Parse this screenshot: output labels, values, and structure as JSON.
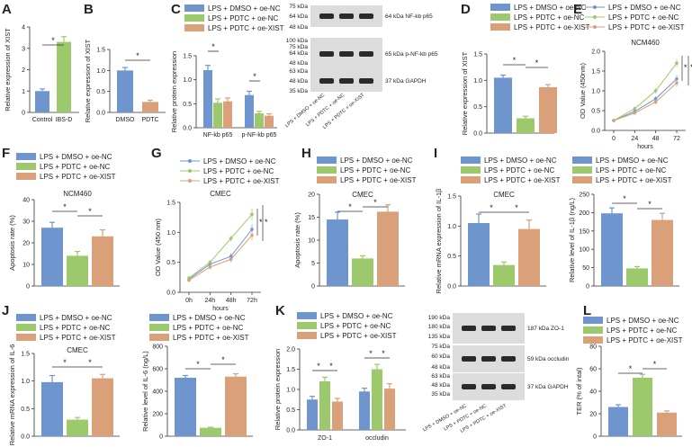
{
  "colors": {
    "blue": "#6f95cf",
    "green": "#9cc96b",
    "orange": "#d9a07a",
    "black": "#333333"
  },
  "panels": {
    "A": {
      "letter": "A",
      "ylabel": "Relative expression of XIST",
      "ticks": [
        "0",
        "1",
        "2",
        "3",
        "4"
      ],
      "categories": [
        "Control",
        "IBS-D"
      ],
      "star": "*"
    },
    "B": {
      "letter": "B",
      "ylabel": "Relative expression of XIST",
      "ticks": [
        "0.0",
        "0.5",
        "1.0",
        "1.5"
      ],
      "categories": [
        "DMSO",
        "PDTC"
      ],
      "star": "*"
    },
    "C": {
      "letter": "C",
      "ylabel": "Relative protein expression",
      "ticks": [
        "0.0",
        "0.5",
        "1.0",
        "1.5"
      ],
      "categories": [
        "NF-kb p65",
        "p-NF-kb p65"
      ],
      "star": "*",
      "legend": [
        "LPS + DMSO + oe-NC",
        "LPS + PDTC + oe-NC",
        "LPS + PDTC + oe-XIST"
      ],
      "blot": {
        "markers1": [
          "75 kDa",
          "64 kDa",
          "48 kDa"
        ],
        "band1": "64 kDa  NF-kb p65",
        "markers2": [
          "100 kDa",
          "75 kDa",
          "64 kDa",
          "48 kDa"
        ],
        "band2": "65 kDa  p-NF-kb p65",
        "markers3": [
          "63 kDa",
          "48 kDa",
          "35 kDa"
        ],
        "band3": "37 kDa  GAPDH",
        "lanes": [
          "LPS + DMSO + oe-NC",
          "LPS + PDTC + oe-NC",
          "LPS + PDTC + oe-XIST"
        ]
      }
    },
    "D": {
      "letter": "D",
      "ylabel": "Relative expression of XIST",
      "ticks": [
        "0.0",
        "0.5",
        "1.0",
        "1.5"
      ],
      "legend": [
        "LPS + DMSO + oe-NC",
        "LPS + PDTC + oe-NC",
        "LPS + PDTC + oe-XIST"
      ],
      "star": "*"
    },
    "E": {
      "letter": "E",
      "title": "NCM460",
      "ylabel": "OD Value (450nm)",
      "xlabel": "hours",
      "ticks": [
        "0.0",
        "0.5",
        "1.0",
        "1.5",
        "2.0"
      ],
      "xticks": [
        "0",
        "24",
        "48",
        "72"
      ],
      "legend": [
        "LPS + DMSO + oe-NC",
        "LPS + PDTC + oe-NC",
        "LPS + PDTC + oe-XIST"
      ],
      "star": "*"
    },
    "F": {
      "letter": "F",
      "title": "NCM460",
      "ylabel": "Apoptosis rate (%)",
      "ticks": [
        "0",
        "10",
        "20",
        "30",
        "40"
      ],
      "legend": [
        "LPS + DMSO + oe-NC",
        "LPS + PDTC + oe-NC",
        "LPS + PDTC + oe-XIST"
      ],
      "star": "*"
    },
    "G": {
      "letter": "G",
      "title": "CMEC",
      "ylabel": "OD Value (450 nm)",
      "xlabel": "hours",
      "ticks": [
        "0.0",
        "0.5",
        "1.0",
        "1.5"
      ],
      "xticks": [
        "0h",
        "24h",
        "48h",
        "72h"
      ],
      "legend": [
        "LPS + DMSO + oe-NC",
        "LPS + PDTC + oe-NC",
        "LPS + PDTC + oe-XIST"
      ],
      "star": "*"
    },
    "H": {
      "letter": "H",
      "title": "CMEC",
      "ylabel": "Apoptosis rate (%)",
      "ticks": [
        "0",
        "5",
        "10",
        "15",
        "20"
      ],
      "legend": [
        "LPS + DMSO + oe-NC",
        "LPS + PDTC + oe-NC",
        "LPS + PDTC + oe-XIST"
      ],
      "star": "*"
    },
    "I": {
      "letter": "I",
      "title": "CMEC",
      "ylabel": "Relative mRNA expression of IL-1β",
      "ylabel2": "Relative level of IL-1β (ng/L)",
      "ticks": [
        "0.0",
        "0.5",
        "1.0",
        "1.5"
      ],
      "ticks2": [
        "0",
        "50",
        "100",
        "150",
        "200",
        "250"
      ],
      "legend": [
        "LPS + DMSO + oe-NC",
        "LPS + PDTC + oe-NC",
        "LPS + PDTC + oe-XIST"
      ],
      "star": "*"
    },
    "J": {
      "letter": "J",
      "title": "CMEC",
      "ylabel": "Relative mRNA expression of IL-6",
      "ylabel2": "Relative level of IL-6 (ng/L)",
      "ticks": [
        "0.0",
        "0.5",
        "1.0",
        "1.5"
      ],
      "ticks2": [
        "0",
        "200",
        "400",
        "600",
        "800"
      ],
      "legend": [
        "LPS + DMSO + oe-NC",
        "LPS + PDTC + oe-NC",
        "LPS + PDTC + oe-XIST"
      ],
      "star": "*"
    },
    "K": {
      "letter": "K",
      "ylabel": "Relative protein expression",
      "ticks": [
        "0.0",
        "0.5",
        "1.0",
        "1.5",
        "2.0"
      ],
      "categories": [
        "ZO-1",
        "occludin"
      ],
      "legend": [
        "LPS + DMSO + oe-NC",
        "LPS + PDTC + oe-NC",
        "LPS + PDTC + oe-XIST"
      ],
      "star": "*",
      "blot": {
        "markers1": [
          "190 kDa",
          "180 kDa",
          "135 kDa"
        ],
        "band1": "187 kDa  ZO-1",
        "markers2": [
          "75 kDa",
          "60 kDa",
          "48 kDa"
        ],
        "band2": "59 kDa  occludin",
        "markers3": [
          "63 kDa",
          "48 kDa",
          "35 kDa"
        ],
        "band3": "37 kDa  GAPDH",
        "lanes": [
          "LPS + DMSO + oe-NC",
          "LPS + PDTC + oe-NC",
          "LPS + PDTC + oe-XIST"
        ]
      }
    },
    "L": {
      "letter": "L",
      "ylabel": "TER (% of intal)",
      "ticks": [
        "0",
        "20",
        "40",
        "60",
        "80"
      ],
      "legend": [
        "LPS + DMSO + oe-NC",
        "LPS + PDTC + oe-NC",
        "LPS + PDTC + oe-XIST"
      ],
      "star": "*"
    }
  },
  "chart_data": [
    {
      "id": "A",
      "type": "bar",
      "categories": [
        "Control",
        "IBS-D"
      ],
      "values": [
        1.0,
        3.3
      ],
      "errors": [
        0.1,
        0.25
      ],
      "ylim": [
        0,
        4
      ],
      "colors": [
        "blue",
        "green"
      ],
      "ylabel": "Relative expression of XIST"
    },
    {
      "id": "B",
      "type": "bar",
      "categories": [
        "DMSO",
        "PDTC"
      ],
      "values": [
        1.0,
        0.25
      ],
      "errors": [
        0.07,
        0.04
      ],
      "ylim": [
        0,
        1.5
      ],
      "colors": [
        "blue",
        "orange"
      ],
      "ylabel": "Relative expression of XIST"
    },
    {
      "id": "C",
      "type": "bar",
      "categories": [
        "NF-kb p65",
        "p-NF-kb p65"
      ],
      "series": [
        {
          "name": "LPS + DMSO + oe-NC",
          "values": [
            1.2,
            0.68
          ]
        },
        {
          "name": "LPS + PDTC + oe-NC",
          "values": [
            0.52,
            0.3
          ]
        },
        {
          "name": "LPS + PDTC + oe-XIST",
          "values": [
            0.55,
            0.25
          ]
        }
      ],
      "errors": [
        [
          0.1,
          0.08
        ],
        [
          0.08,
          0.04
        ],
        [
          0.07,
          0.04
        ]
      ],
      "ylim": [
        0,
        1.5
      ],
      "ylabel": "Relative protein expression"
    },
    {
      "id": "D",
      "type": "bar",
      "categories": [
        ""
      ],
      "series": [
        {
          "name": "LPS + DMSO + oe-NC",
          "values": [
            1.05
          ]
        },
        {
          "name": "LPS + PDTC + oe-NC",
          "values": [
            0.28
          ]
        },
        {
          "name": "LPS + PDTC + oe-XIST",
          "values": [
            0.87
          ]
        }
      ],
      "errors": [
        [
          0.05
        ],
        [
          0.04
        ],
        [
          0.05
        ]
      ],
      "ylim": [
        0,
        1.5
      ],
      "ylabel": "Relative expression of XIST"
    },
    {
      "id": "E",
      "type": "line",
      "title": "NCM460",
      "x": [
        0,
        24,
        48,
        72
      ],
      "series": [
        {
          "name": "LPS + DMSO + oe-NC",
          "values": [
            0.25,
            0.48,
            0.8,
            1.3
          ]
        },
        {
          "name": "LPS + PDTC + oe-NC",
          "values": [
            0.25,
            0.55,
            1.0,
            1.7
          ]
        },
        {
          "name": "LPS + PDTC + oe-XIST",
          "values": [
            0.25,
            0.44,
            0.72,
            1.2
          ]
        }
      ],
      "errors": [
        [
          0.03,
          0.05,
          0.06,
          0.1
        ],
        [
          0.03,
          0.05,
          0.07,
          0.1
        ],
        [
          0.03,
          0.04,
          0.06,
          0.1
        ]
      ],
      "ylim": [
        0,
        2.0
      ],
      "xlabel": "hours",
      "ylabel": "OD Value (450nm)"
    },
    {
      "id": "F",
      "type": "bar",
      "title": "NCM460",
      "categories": [
        ""
      ],
      "series": [
        {
          "name": "LPS + DMSO + oe-NC",
          "values": [
            27
          ]
        },
        {
          "name": "LPS + PDTC + oe-NC",
          "values": [
            14
          ]
        },
        {
          "name": "LPS + PDTC + oe-XIST",
          "values": [
            23
          ]
        }
      ],
      "errors": [
        [
          2.5
        ],
        [
          2
        ],
        [
          3
        ]
      ],
      "ylim": [
        0,
        40
      ],
      "ylabel": "Apoptosis rate (%)"
    },
    {
      "id": "G",
      "type": "line",
      "title": "CMEC",
      "x": [
        0,
        24,
        48,
        72
      ],
      "series": [
        {
          "name": "LPS + DMSO + oe-NC",
          "values": [
            0.22,
            0.47,
            0.6,
            1.05
          ]
        },
        {
          "name": "LPS + PDTC + oe-NC",
          "values": [
            0.24,
            0.5,
            0.9,
            1.3
          ]
        },
        {
          "name": "LPS + PDTC + oe-XIST",
          "values": [
            0.2,
            0.42,
            0.55,
            0.95
          ]
        }
      ],
      "errors": [
        [
          0.02,
          0.04,
          0.05,
          0.08
        ],
        [
          0.02,
          0.04,
          0.05,
          0.1
        ],
        [
          0.02,
          0.04,
          0.05,
          0.08
        ]
      ],
      "ylim": [
        0,
        1.5
      ],
      "xlabel": "hours",
      "ylabel": "OD Value (450 nm)"
    },
    {
      "id": "H",
      "type": "bar",
      "title": "CMEC",
      "categories": [
        ""
      ],
      "series": [
        {
          "name": "LPS + DMSO + oe-NC",
          "values": [
            14.5
          ]
        },
        {
          "name": "LPS + PDTC + oe-NC",
          "values": [
            6
          ]
        },
        {
          "name": "LPS + PDTC + oe-XIST",
          "values": [
            16.2
          ]
        }
      ],
      "errors": [
        [
          1.6
        ],
        [
          0.6
        ],
        [
          1.5
        ]
      ],
      "ylim": [
        0,
        20
      ],
      "ylabel": "Apoptosis rate (%)"
    },
    {
      "id": "I1",
      "type": "bar",
      "title": "CMEC",
      "categories": [
        ""
      ],
      "series": [
        {
          "name": "LPS + DMSO + oe-NC",
          "values": [
            1.05
          ]
        },
        {
          "name": "LPS + PDTC + oe-NC",
          "values": [
            0.35
          ]
        },
        {
          "name": "LPS + PDTC + oe-XIST",
          "values": [
            0.95
          ]
        }
      ],
      "errors": [
        [
          0.15
        ],
        [
          0.05
        ],
        [
          0.15
        ]
      ],
      "ylim": [
        0,
        1.5
      ],
      "ylabel": "Relative mRNA expression of IL-1β"
    },
    {
      "id": "I2",
      "type": "bar",
      "categories": [
        ""
      ],
      "series": [
        {
          "name": "LPS + DMSO + oe-NC",
          "values": [
            198
          ]
        },
        {
          "name": "LPS + PDTC + oe-NC",
          "values": [
            48
          ]
        },
        {
          "name": "LPS + PDTC + oe-XIST",
          "values": [
            180
          ]
        }
      ],
      "errors": [
        [
          15
        ],
        [
          5
        ],
        [
          18
        ]
      ],
      "ylim": [
        0,
        250
      ],
      "ylabel": "Relative level of IL-1β (ng/L)"
    },
    {
      "id": "J1",
      "type": "bar",
      "title": "CMEC",
      "categories": [
        ""
      ],
      "series": [
        {
          "name": "LPS + DMSO + oe-NC",
          "values": [
            0.98
          ]
        },
        {
          "name": "LPS + PDTC + oe-NC",
          "values": [
            0.3
          ]
        },
        {
          "name": "LPS + PDTC + oe-XIST",
          "values": [
            1.05
          ]
        }
      ],
      "errors": [
        [
          0.12
        ],
        [
          0.04
        ],
        [
          0.07
        ]
      ],
      "ylim": [
        0,
        1.5
      ],
      "ylabel": "Relative mRNA expression of IL-6"
    },
    {
      "id": "J2",
      "type": "bar",
      "categories": [
        ""
      ],
      "series": [
        {
          "name": "LPS + DMSO + oe-NC",
          "values": [
            520
          ]
        },
        {
          "name": "LPS + PDTC + oe-NC",
          "values": [
            75
          ]
        },
        {
          "name": "LPS + PDTC + oe-XIST",
          "values": [
            530
          ]
        }
      ],
      "errors": [
        [
          20
        ],
        [
          5
        ],
        [
          25
        ]
      ],
      "ylim": [
        0,
        800
      ],
      "ylabel": "Relative level of IL-6 (ng/L)"
    },
    {
      "id": "K",
      "type": "bar",
      "categories": [
        "ZO-1",
        "occludin"
      ],
      "series": [
        {
          "name": "LPS + DMSO + oe-NC",
          "values": [
            0.75,
            0.95
          ]
        },
        {
          "name": "LPS + PDTC + oe-NC",
          "values": [
            1.2,
            1.5
          ]
        },
        {
          "name": "LPS + PDTC + oe-XIST",
          "values": [
            0.7,
            1.02
          ]
        }
      ],
      "errors": [
        [
          0.08,
          0.08
        ],
        [
          0.1,
          0.12
        ],
        [
          0.08,
          0.12
        ]
      ],
      "ylim": [
        0,
        2.0
      ],
      "ylabel": "Relative protein expression"
    },
    {
      "id": "L",
      "type": "bar",
      "categories": [
        ""
      ],
      "series": [
        {
          "name": "LPS + DMSO + oe-NC",
          "values": [
            26
          ]
        },
        {
          "name": "LPS + PDTC + oe-NC",
          "values": [
            52
          ]
        },
        {
          "name": "LPS + PDTC + oe-XIST",
          "values": [
            21
          ]
        }
      ],
      "errors": [
        [
          2
        ],
        [
          3
        ],
        [
          1.5
        ]
      ],
      "ylim": [
        0,
        80
      ],
      "ylabel": "TER (% of intal)"
    }
  ]
}
